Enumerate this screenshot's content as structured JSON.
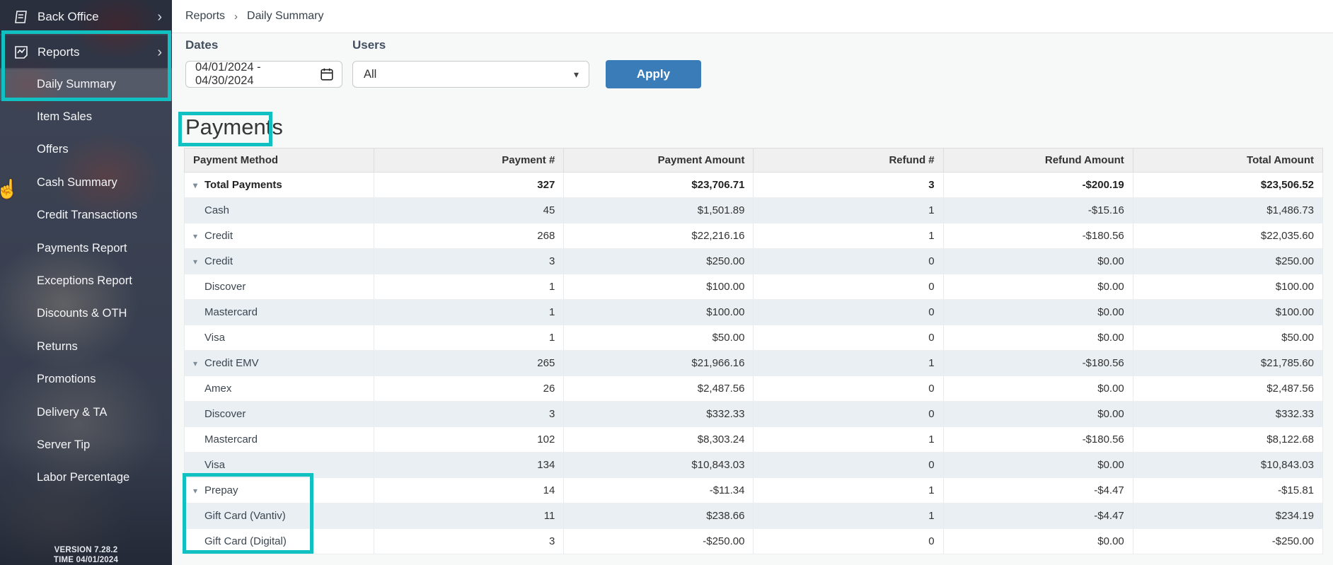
{
  "colors": {
    "annotation_teal": "#11c1c1",
    "apply_blue": "#3a7cb8",
    "sidebar_bg": "#3e4556",
    "row_stripe": "#e9eff3"
  },
  "icons": {
    "caret_down": "▾",
    "chevron_right": "›",
    "dropdown_caret": "▾",
    "hand_cursor": "☝"
  },
  "sidebar": {
    "back_office": "Back Office",
    "reports": "Reports",
    "submenu": [
      "Daily Summary",
      "Item Sales",
      "Offers",
      "Cash Summary",
      "Credit Transactions",
      "Payments Report",
      "Exceptions Report",
      "Discounts & OTH",
      "Returns",
      "Promotions",
      "Delivery & TA",
      "Server Tip",
      "Labor Percentage"
    ],
    "active_item": "Daily Summary",
    "version_line": "VERSION 7.28.2",
    "time_line": "TIME 04/01/2024"
  },
  "breadcrumb": {
    "items": [
      "Reports",
      "Daily Summary"
    ],
    "separator": "›"
  },
  "filters": {
    "dates_label": "Dates",
    "dates_value": "04/01/2024 - 04/30/2024",
    "users_label": "Users",
    "users_value": "All",
    "apply_label": "Apply"
  },
  "section_title": "Payments",
  "table": {
    "columns": [
      "Payment Method",
      "Payment #",
      "Payment Amount",
      "Refund #",
      "Refund Amount",
      "Total Amount"
    ],
    "rows": [
      {
        "method": "Total Payments",
        "level": 0,
        "caret": true,
        "bold": true,
        "payments": "327",
        "payment_amount": "$23,706.71",
        "refunds": "3",
        "refund_amount": "-$200.19",
        "total": "$23,506.52"
      },
      {
        "method": "Cash",
        "level": 1,
        "caret": false,
        "bold": false,
        "payments": "45",
        "payment_amount": "$1,501.89",
        "refunds": "1",
        "refund_amount": "-$15.16",
        "total": "$1,486.73"
      },
      {
        "method": "Credit",
        "level": 1,
        "caret": true,
        "bold": false,
        "payments": "268",
        "payment_amount": "$22,216.16",
        "refunds": "1",
        "refund_amount": "-$180.56",
        "total": "$22,035.60"
      },
      {
        "method": "Credit",
        "level": 2,
        "caret": true,
        "bold": false,
        "payments": "3",
        "payment_amount": "$250.00",
        "refunds": "0",
        "refund_amount": "$0.00",
        "total": "$250.00"
      },
      {
        "method": "Discover",
        "level": 3,
        "caret": false,
        "bold": false,
        "payments": "1",
        "payment_amount": "$100.00",
        "refunds": "0",
        "refund_amount": "$0.00",
        "total": "$100.00"
      },
      {
        "method": "Mastercard",
        "level": 3,
        "caret": false,
        "bold": false,
        "payments": "1",
        "payment_amount": "$100.00",
        "refunds": "0",
        "refund_amount": "$0.00",
        "total": "$100.00"
      },
      {
        "method": "Visa",
        "level": 3,
        "caret": false,
        "bold": false,
        "payments": "1",
        "payment_amount": "$50.00",
        "refunds": "0",
        "refund_amount": "$0.00",
        "total": "$50.00"
      },
      {
        "method": "Credit EMV",
        "level": 2,
        "caret": true,
        "bold": false,
        "payments": "265",
        "payment_amount": "$21,966.16",
        "refunds": "1",
        "refund_amount": "-$180.56",
        "total": "$21,785.60"
      },
      {
        "method": "Amex",
        "level": 3,
        "caret": false,
        "bold": false,
        "payments": "26",
        "payment_amount": "$2,487.56",
        "refunds": "0",
        "refund_amount": "$0.00",
        "total": "$2,487.56"
      },
      {
        "method": "Discover",
        "level": 3,
        "caret": false,
        "bold": false,
        "payments": "3",
        "payment_amount": "$332.33",
        "refunds": "0",
        "refund_amount": "$0.00",
        "total": "$332.33"
      },
      {
        "method": "Mastercard",
        "level": 3,
        "caret": false,
        "bold": false,
        "payments": "102",
        "payment_amount": "$8,303.24",
        "refunds": "1",
        "refund_amount": "-$180.56",
        "total": "$8,122.68"
      },
      {
        "method": "Visa",
        "level": 3,
        "caret": false,
        "bold": false,
        "payments": "134",
        "payment_amount": "$10,843.03",
        "refunds": "0",
        "refund_amount": "$0.00",
        "total": "$10,843.03"
      },
      {
        "method": "Prepay",
        "level": 1,
        "caret": true,
        "bold": false,
        "payments": "14",
        "payment_amount": "-$11.34",
        "refunds": "1",
        "refund_amount": "-$4.47",
        "total": "-$15.81"
      },
      {
        "method": "Gift Card (Vantiv)",
        "level": 2,
        "caret": false,
        "bold": false,
        "payments": "11",
        "payment_amount": "$238.66",
        "refunds": "1",
        "refund_amount": "-$4.47",
        "total": "$234.19"
      },
      {
        "method": "Gift Card (Digital)",
        "level": 2,
        "caret": false,
        "bold": false,
        "payments": "3",
        "payment_amount": "-$250.00",
        "refunds": "0",
        "refund_amount": "$0.00",
        "total": "-$250.00"
      }
    ]
  }
}
